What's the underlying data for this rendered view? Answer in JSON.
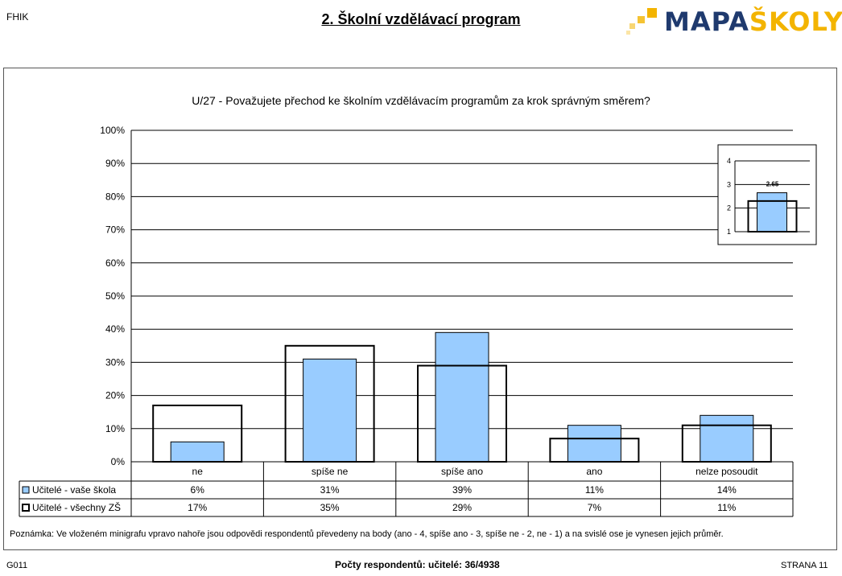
{
  "header": {
    "code": "FHIK",
    "title": "2. Školní vzdělávací program",
    "logo": {
      "part1": "MAPA",
      "part2": "ŠKOLY",
      "brand_blue": "#1f3a6e",
      "brand_gold": "#f3b400"
    }
  },
  "chart_data": [
    {
      "type": "bar",
      "title": "U/27 - Považujete přechod ke školním vzdělávacím programům za krok správným směrem?",
      "categories": [
        "ne",
        "spíše ne",
        "spíše ano",
        "ano",
        "nelze posoudit"
      ],
      "series": [
        {
          "name": "Učitelé - vaše škola",
          "values": [
            6,
            31,
            39,
            11,
            14
          ],
          "labels": [
            "6%",
            "31%",
            "39%",
            "11%",
            "14%"
          ],
          "color": "#99ccff"
        },
        {
          "name": "Učitelé - všechny ZŠ",
          "values": [
            17,
            35,
            29,
            7,
            11
          ],
          "labels": [
            "17%",
            "35%",
            "29%",
            "7%",
            "11%"
          ],
          "color": "#ffffff"
        }
      ],
      "ylim": [
        0,
        100
      ],
      "yticks": [
        "0%",
        "10%",
        "20%",
        "30%",
        "40%",
        "50%",
        "60%",
        "70%",
        "80%",
        "90%",
        "100%"
      ],
      "grid": true,
      "legend": "table below chart"
    },
    {
      "type": "bar",
      "categories": [
        ""
      ],
      "series": [
        {
          "name": "Učitelé - vaše škola",
          "values": [
            2.65
          ],
          "labels": [
            "2.65"
          ],
          "color": "#99ccff"
        },
        {
          "name": "Učitelé - všechny ZŠ",
          "values": [
            2.3
          ],
          "color": "#ffffff"
        }
      ],
      "ylim": [
        1,
        4
      ],
      "yticks": [
        "1",
        "2",
        "3",
        "4"
      ],
      "legend": "none"
    }
  ],
  "note": "Poznámka:    Ve vloženém minigrafu vpravo nahoře jsou odpovědi respondentů převedeny na body (ano - 4, spíše ano - 3, spíše ne - 2, ne - 1) a na svislé ose je vynesen jejich průměr.",
  "footer": {
    "left": "G011",
    "middle": "Počty respondentů:   učitelé: 36/4938",
    "right": "STRANA  11"
  }
}
